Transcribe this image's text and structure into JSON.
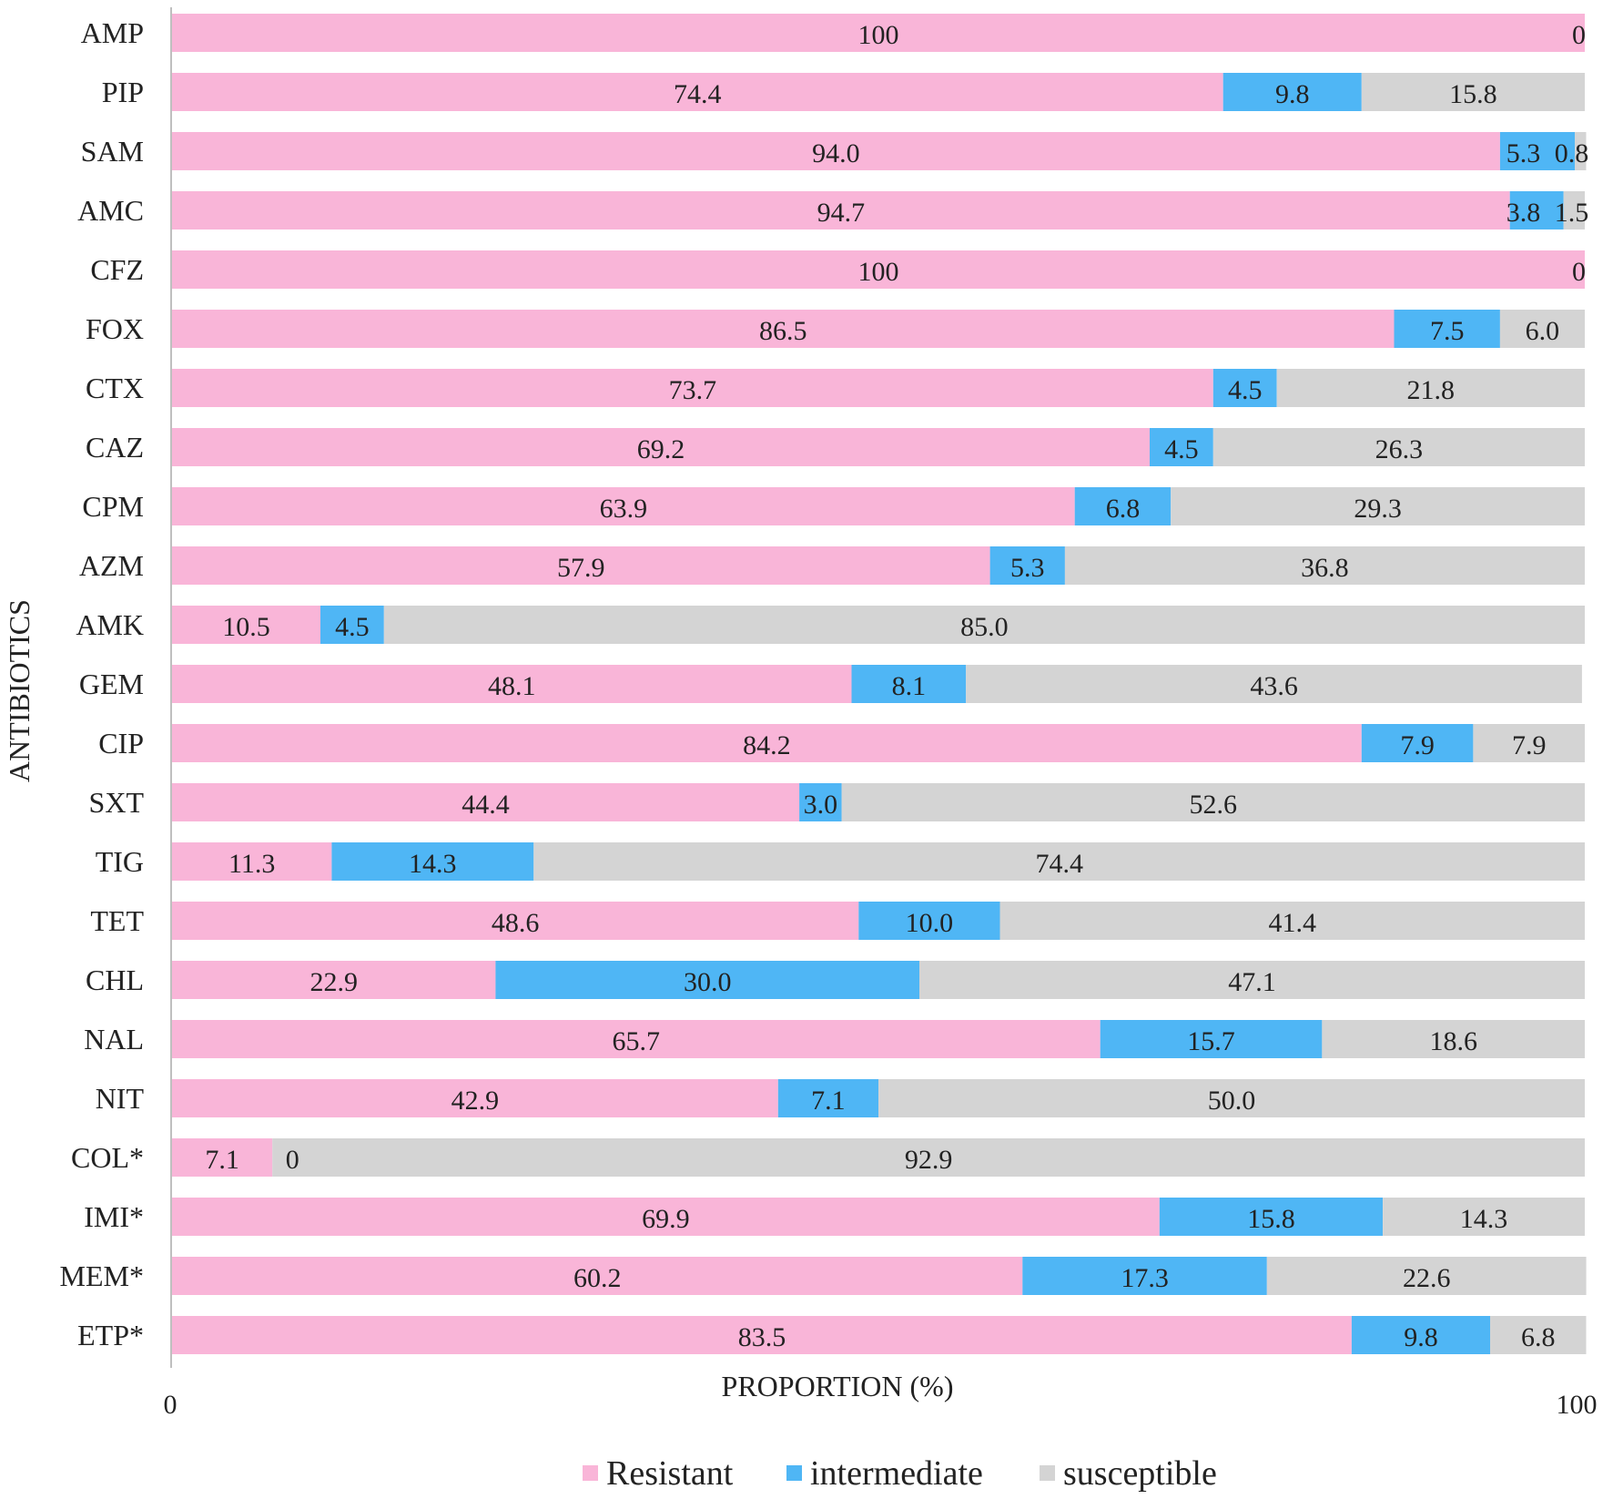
{
  "chart_data": {
    "type": "bar",
    "orientation": "horizontal",
    "stacked": true,
    "ylabel": "ANTIBIOTICS",
    "xlabel": "PROPORTION (%)",
    "xlim": [
      0,
      100
    ],
    "xticks": [
      "0",
      "100"
    ],
    "legend_position": "bottom",
    "categories": [
      "AMP",
      "PIP",
      "SAM",
      "AMC",
      "CFZ",
      "FOX",
      "CTX",
      "CAZ",
      "CPM",
      "AZM",
      "AMK",
      "GEM",
      "CIP",
      "SXT",
      "TIG",
      "TET",
      "CHL",
      "NAL",
      "NIT",
      "COL*",
      "IMI*",
      "MEM*",
      "ETP*"
    ],
    "series": [
      {
        "name": "Resistant",
        "color": "#F9B5D8",
        "values": [
          100,
          74.4,
          94.0,
          94.7,
          100,
          86.5,
          73.7,
          69.2,
          63.9,
          57.9,
          10.5,
          48.1,
          84.2,
          44.4,
          11.3,
          48.6,
          22.9,
          65.7,
          42.9,
          7.1,
          69.9,
          60.2,
          83.5
        ],
        "labels": [
          "100",
          "74.4",
          "94.0",
          "94.7",
          "100",
          "86.5",
          "73.7",
          "69.2",
          "63.9",
          "57.9",
          "10.5",
          "48.1",
          "84.2",
          "44.4",
          "11.3",
          "48.6",
          "22.9",
          "65.7",
          "42.9",
          "7.1",
          "69.9",
          "60.2",
          "83.5"
        ]
      },
      {
        "name": "intermediate",
        "color": "#4FB6F5",
        "values": [
          0,
          9.8,
          5.3,
          3.8,
          0,
          7.5,
          4.5,
          4.5,
          6.8,
          5.3,
          4.5,
          8.1,
          7.9,
          3.0,
          14.3,
          10.0,
          30.0,
          15.7,
          7.1,
          0,
          15.8,
          17.3,
          9.8
        ],
        "labels": [
          "",
          "9.8",
          "5.3",
          "3.8",
          "",
          "7.5",
          "4.5",
          "4.5",
          "6.8",
          "5.3",
          "4.5",
          "8.1",
          "7.9",
          "3.0",
          "14.3",
          "10.0",
          "30.0",
          "15.7",
          "7.1",
          "0",
          "15.8",
          "17.3",
          "9.8"
        ]
      },
      {
        "name": "susceptible",
        "color": "#D4D4D4",
        "values": [
          0,
          15.8,
          0.8,
          1.5,
          0,
          6.0,
          21.8,
          26.3,
          29.3,
          36.8,
          85.0,
          43.6,
          7.9,
          52.6,
          74.4,
          41.4,
          47.1,
          18.6,
          50.0,
          92.9,
          14.3,
          22.6,
          6.8
        ],
        "labels": [
          "0",
          "15.8",
          "0.8",
          "1.5",
          "0",
          "6.0",
          "21.8",
          "26.3",
          "29.3",
          "36.8",
          "85.0",
          "43.6",
          "7.9",
          "52.6",
          "74.4",
          "41.4",
          "47.1",
          "18.6",
          "50.0",
          "92.9",
          "14.3",
          "22.6",
          "6.8"
        ]
      }
    ]
  }
}
